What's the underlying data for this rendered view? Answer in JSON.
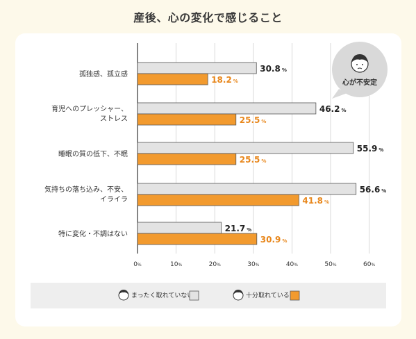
{
  "title": "産後、心の変化で感じること",
  "callout": {
    "label": "心が不安定"
  },
  "legend": {
    "items": [
      {
        "label": "まったく取れていない",
        "color": "#e3e3e3"
      },
      {
        "label": "十分取れている",
        "color": "#f29a2e"
      }
    ]
  },
  "colors": {
    "grey_bar": "#e3e3e3",
    "orange_bar": "#f29a2e",
    "grey_text": "#222222",
    "orange_text": "#e8871c"
  },
  "chart_data": {
    "type": "bar",
    "orientation": "horizontal",
    "title": "産後、心の変化で感じること",
    "categories": [
      [
        "孤独感、孤立感"
      ],
      [
        "育児へのプレッシャー、",
        "ストレス"
      ],
      [
        "睡眠の質の低下、不眠"
      ],
      [
        "気持ちの落ち込み、不安、",
        "イライラ"
      ],
      [
        "特に変化・不調はない"
      ]
    ],
    "series": [
      {
        "name": "まったく取れていない",
        "values": [
          30.8,
          46.2,
          55.9,
          56.6,
          21.7
        ]
      },
      {
        "name": "十分取れている",
        "values": [
          18.2,
          25.5,
          25.5,
          41.8,
          30.9
        ]
      }
    ],
    "xlim": [
      0,
      60
    ],
    "xticks": [
      0,
      10,
      20,
      30,
      40,
      50,
      60
    ],
    "tick_suffix": "%",
    "value_suffix": "%",
    "grid": true,
    "legend_position": "bottom"
  }
}
